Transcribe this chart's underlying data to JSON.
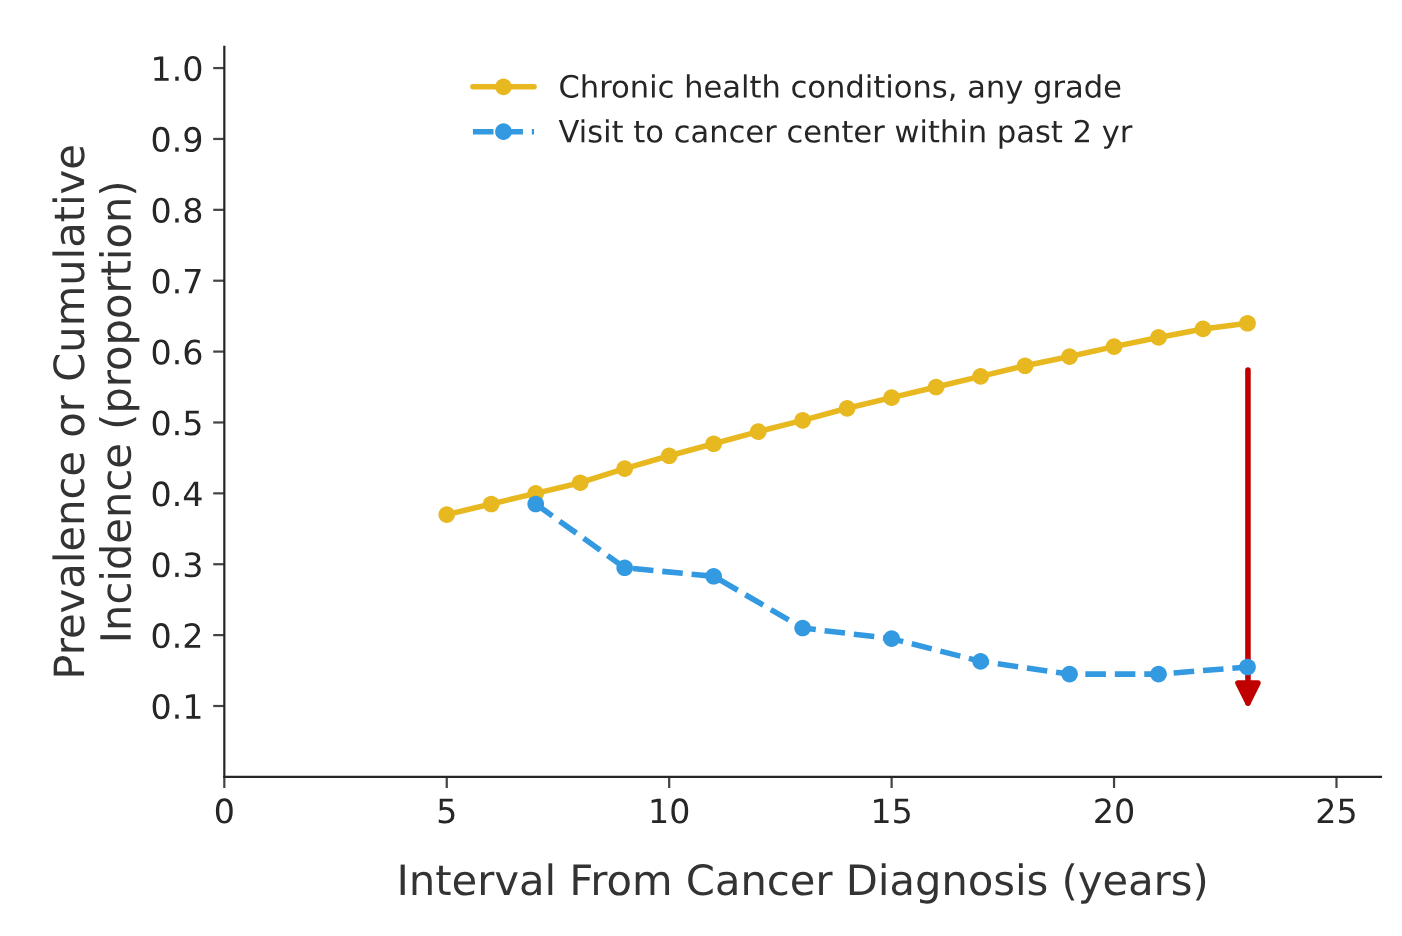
{
  "chart_data": {
    "type": "line",
    "xlabel": "Interval From Cancer Diagnosis (years)",
    "ylabel": "Prevalence or Cumulative\nIncidence (proportion)",
    "xlim": [
      0,
      26
    ],
    "xticks": [
      0,
      5,
      10,
      15,
      20,
      25
    ],
    "ylim": [
      0.0,
      1.03
    ],
    "yticks": [
      0.1,
      0.2,
      0.3,
      0.4,
      0.5,
      0.6,
      0.7,
      0.8,
      0.9,
      {
        "value": 1,
        "label": "1.0"
      }
    ],
    "legend": "top",
    "grid": false,
    "marker": "circle",
    "series": [
      {
        "name": "Chronic health conditions, any grade",
        "color": "#e8b820",
        "line_style": "solid",
        "x": [
          5,
          6,
          7,
          8,
          9,
          10,
          11,
          12,
          13,
          14,
          15,
          16,
          17,
          18,
          19,
          20,
          21,
          22,
          23
        ],
        "values": [
          0.37,
          0.385,
          0.4,
          0.415,
          0.435,
          0.453,
          0.47,
          0.487,
          0.503,
          0.52,
          0.535,
          0.55,
          0.565,
          0.58,
          0.593,
          0.607,
          0.62,
          0.632,
          0.64
        ]
      },
      {
        "name": "Visit to cancer center within past 2 yr",
        "color": "#3399e0",
        "line_style": "dashed",
        "x": [
          7,
          9,
          11,
          13,
          15,
          17,
          19,
          21,
          23
        ],
        "values": [
          0.385,
          0.295,
          0.283,
          0.21,
          0.195,
          0.163,
          0.145,
          0.145,
          0.155
        ]
      }
    ]
  }
}
